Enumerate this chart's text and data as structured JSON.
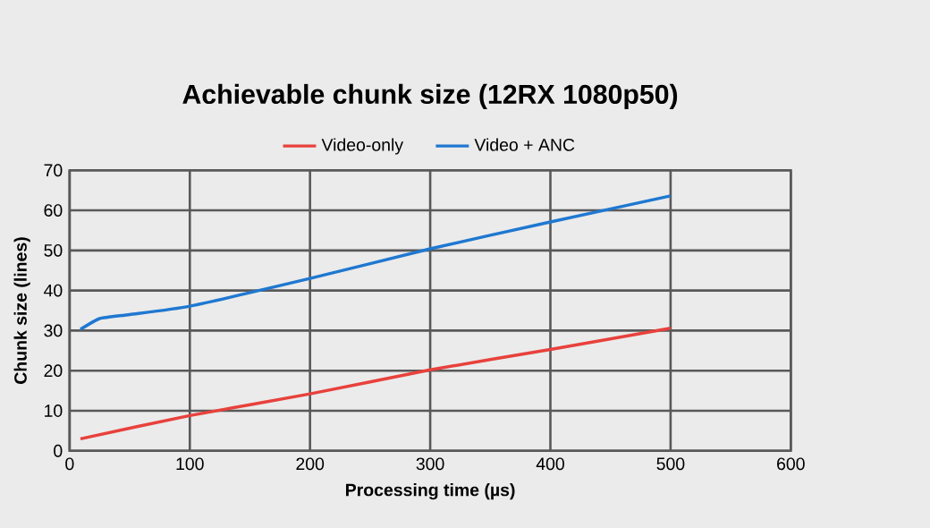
{
  "chart_data": {
    "type": "line",
    "title": "Achievable chunk size (12RX 1080p50)",
    "xlabel": "Processing time (µs)",
    "ylabel": "Chunk size (lines)",
    "xlim": [
      0,
      600
    ],
    "xticks": [
      0,
      100,
      200,
      300,
      400,
      500,
      600
    ],
    "ylim": [
      0,
      70
    ],
    "yticks": [
      0,
      10,
      20,
      30,
      40,
      50,
      60,
      70
    ],
    "grid": true,
    "legend": "top",
    "marker": "none",
    "series": [
      {
        "name": "Video-only",
        "color": "#e8413c",
        "x": [
          9,
          100,
          200,
          300,
          400,
          500
        ],
        "values": [
          3,
          8.8,
          14.2,
          20.2,
          25.3,
          30.6
        ]
      },
      {
        "name": "Video + ANC",
        "color": "#1f78d1",
        "x": [
          9,
          25,
          50,
          100,
          200,
          300,
          400,
          500
        ],
        "values": [
          30.3,
          33,
          34,
          36.1,
          43,
          50.4,
          57.1,
          63.6
        ]
      }
    ]
  }
}
